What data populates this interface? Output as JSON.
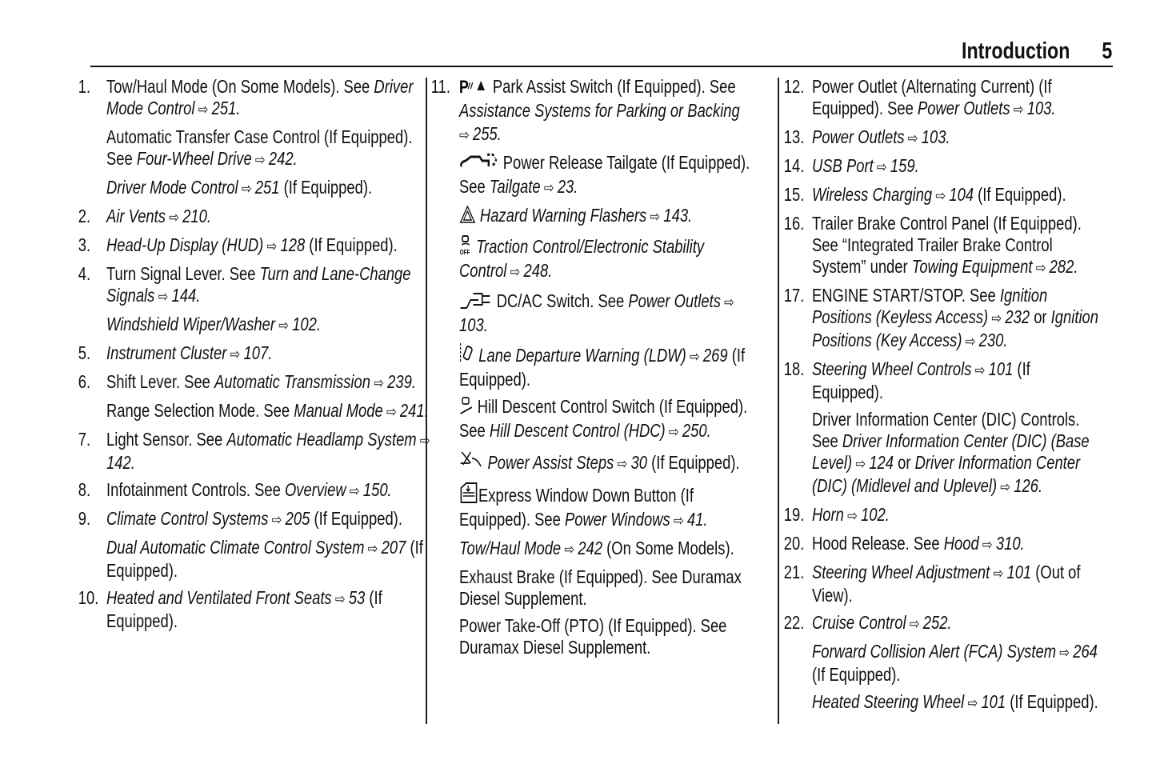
{
  "header": {
    "section": "Introduction",
    "page": "5"
  },
  "columns": [
    {
      "items": [
        {
          "num": "1.",
          "paras": [
            [
              {
                "s": "n",
                "t": "Tow/Haul Mode (On Some Models). See "
              },
              {
                "s": "i",
                "t": "Driver Mode Control"
              },
              {
                "s": "a",
                "t": "251."
              }
            ],
            [
              {
                "s": "n",
                "t": "Automatic Transfer Case Control (If Equipped). See "
              },
              {
                "s": "i",
                "t": "Four-Wheel Drive"
              },
              {
                "s": "a",
                "t": "242."
              }
            ],
            [
              {
                "s": "i",
                "t": "Driver Mode Control"
              },
              {
                "s": "a",
                "t": "251"
              },
              {
                "s": "n",
                "t": " (If Equipped)."
              }
            ]
          ]
        },
        {
          "num": "2.",
          "paras": [
            [
              {
                "s": "i",
                "t": "Air Vents"
              },
              {
                "s": "a",
                "t": "210."
              }
            ]
          ]
        },
        {
          "num": "3.",
          "paras": [
            [
              {
                "s": "i",
                "t": "Head-Up Display (HUD)"
              },
              {
                "s": "a",
                "t": "128"
              },
              {
                "s": "n",
                "t": " (If Equipped)."
              }
            ]
          ]
        },
        {
          "num": "4.",
          "paras": [
            [
              {
                "s": "n",
                "t": "Turn Signal Lever. See "
              },
              {
                "s": "i",
                "t": "Turn and Lane-Change Signals"
              },
              {
                "s": "a",
                "t": "144."
              }
            ],
            [
              {
                "s": "i",
                "t": "Windshield Wiper/Washer"
              },
              {
                "s": "a",
                "t": "102."
              }
            ]
          ]
        },
        {
          "num": "5.",
          "paras": [
            [
              {
                "s": "i",
                "t": "Instrument Cluster"
              },
              {
                "s": "a",
                "t": "107."
              }
            ]
          ]
        },
        {
          "num": "6.",
          "paras": [
            [
              {
                "s": "n",
                "t": "Shift Lever. See "
              },
              {
                "s": "i",
                "t": "Automatic Transmission"
              },
              {
                "s": "a",
                "t": "239."
              }
            ],
            [
              {
                "s": "n",
                "t": "Range Selection Mode. See "
              },
              {
                "s": "i",
                "t": "Manual Mode"
              },
              {
                "s": "a",
                "t": "241."
              }
            ]
          ]
        },
        {
          "num": "7.",
          "paras": [
            [
              {
                "s": "n",
                "t": "Light Sensor. See "
              },
              {
                "s": "i",
                "t": "Automatic Headlamp System"
              },
              {
                "s": "a",
                "t": "142."
              }
            ]
          ]
        },
        {
          "num": "8.",
          "paras": [
            [
              {
                "s": "n",
                "t": "Infotainment Controls. See "
              },
              {
                "s": "i",
                "t": "Overview"
              },
              {
                "s": "a",
                "t": "150."
              }
            ]
          ]
        },
        {
          "num": "9.",
          "paras": [
            [
              {
                "s": "i",
                "t": "Climate Control Systems"
              },
              {
                "s": "a",
                "t": "205"
              },
              {
                "s": "n",
                "t": " (If Equipped)."
              }
            ],
            [
              {
                "s": "i",
                "t": "Dual Automatic Climate Control System"
              },
              {
                "s": "a",
                "t": "207"
              },
              {
                "s": "n",
                "t": " (If Equipped)."
              }
            ]
          ]
        },
        {
          "num": "10.",
          "paras": [
            [
              {
                "s": "i",
                "t": "Heated and Ventilated Front Seats"
              },
              {
                "s": "a",
                "t": "53"
              },
              {
                "s": "n",
                "t": " (If Equipped)."
              }
            ]
          ]
        }
      ]
    },
    {
      "items": [
        {
          "num": "11.",
          "paras": [
            [
              {
                "s": "icon",
                "t": "park-assist-icon"
              },
              {
                "s": "n",
                "t": " Park Assist Switch (If Equipped). See "
              },
              {
                "s": "i",
                "t": "Assistance Systems for Parking or Backing"
              },
              {
                "s": "a",
                "t": "255."
              }
            ],
            [
              {
                "s": "icon",
                "t": "tailgate-icon"
              },
              {
                "s": "n",
                "t": " Power Release Tailgate (If Equipped). See "
              },
              {
                "s": "i",
                "t": "Tailgate"
              },
              {
                "s": "a",
                "t": "23."
              }
            ],
            [
              {
                "s": "icon",
                "t": "hazard-icon"
              },
              {
                "s": "i",
                "t": " Hazard Warning Flashers"
              },
              {
                "s": "a",
                "t": "143."
              }
            ],
            [
              {
                "s": "icon",
                "t": "traction-off-icon"
              },
              {
                "s": "i",
                "t": " Traction Control/Electronic Stability Control"
              },
              {
                "s": "a",
                "t": "248."
              }
            ],
            [
              {
                "s": "icon",
                "t": "dc-ac-plug-icon"
              },
              {
                "s": "n",
                "t": " DC/AC Switch. See "
              },
              {
                "s": "i",
                "t": "Power Outlets"
              },
              {
                "s": "a",
                "t": "103."
              }
            ],
            [
              {
                "s": "icon",
                "t": "lane-departure-icon"
              },
              {
                "s": "i",
                "t": " Lane Departure Warning (LDW)"
              },
              {
                "s": "a",
                "t": "269"
              },
              {
                "s": "n",
                "t": " (If Equipped)."
              }
            ],
            [
              {
                "s": "icon",
                "t": "hill-descent-icon"
              },
              {
                "s": "n",
                "t": " Hill Descent Control Switch (If Equipped). See "
              },
              {
                "s": "i",
                "t": "Hill Descent Control (HDC)"
              },
              {
                "s": "a",
                "t": "250."
              }
            ],
            [
              {
                "s": "icon",
                "t": "assist-steps-icon"
              },
              {
                "s": "i",
                "t": " Power Assist Steps"
              },
              {
                "s": "a",
                "t": "30"
              },
              {
                "s": "n",
                "t": " (If Equipped)."
              }
            ],
            [
              {
                "s": "icon",
                "t": "express-window-icon"
              },
              {
                "s": "n",
                "t": "Express Window Down Button (If Equipped). See "
              },
              {
                "s": "i",
                "t": "Power Windows"
              },
              {
                "s": "a",
                "t": "41."
              }
            ],
            [
              {
                "s": "i",
                "t": "Tow/Haul Mode"
              },
              {
                "s": "a",
                "t": "242"
              },
              {
                "s": "n",
                "t": " (On Some Models)."
              }
            ],
            [
              {
                "s": "n",
                "t": "Exhaust Brake (If Equipped). See Duramax Diesel Supplement."
              }
            ],
            [
              {
                "s": "n",
                "t": "Power Take-Off (PTO) (If Equipped). See Duramax Diesel Supplement."
              }
            ]
          ]
        }
      ]
    },
    {
      "items": [
        {
          "num": "12.",
          "paras": [
            [
              {
                "s": "n",
                "t": "Power Outlet (Alternating Current) (If Equipped). See "
              },
              {
                "s": "i",
                "t": "Power Outlets"
              },
              {
                "s": "a",
                "t": "103."
              }
            ]
          ]
        },
        {
          "num": "13.",
          "paras": [
            [
              {
                "s": "i",
                "t": "Power Outlets"
              },
              {
                "s": "a",
                "t": "103."
              }
            ]
          ]
        },
        {
          "num": "14.",
          "paras": [
            [
              {
                "s": "i",
                "t": "USB Port"
              },
              {
                "s": "a",
                "t": "159."
              }
            ]
          ]
        },
        {
          "num": "15.",
          "paras": [
            [
              {
                "s": "i",
                "t": "Wireless Charging"
              },
              {
                "s": "a",
                "t": "104"
              },
              {
                "s": "n",
                "t": " (If Equipped)."
              }
            ]
          ]
        },
        {
          "num": "16.",
          "paras": [
            [
              {
                "s": "n",
                "t": "Trailer Brake Control Panel (If Equipped). See “Integrated Trailer Brake Control System” under "
              },
              {
                "s": "i",
                "t": "Towing Equipment"
              },
              {
                "s": "a",
                "t": "282."
              }
            ]
          ]
        },
        {
          "num": "17.",
          "paras": [
            [
              {
                "s": "n",
                "t": "ENGINE START/STOP. See "
              },
              {
                "s": "i",
                "t": "Ignition Positions (Keyless Access)"
              },
              {
                "s": "a",
                "t": "232"
              },
              {
                "s": "n",
                "t": " or "
              },
              {
                "s": "i",
                "t": "Ignition Positions (Key Access)"
              },
              {
                "s": "a",
                "t": "230."
              }
            ]
          ]
        },
        {
          "num": "18.",
          "paras": [
            [
              {
                "s": "i",
                "t": "Steering Wheel Controls"
              },
              {
                "s": "a",
                "t": "101"
              },
              {
                "s": "n",
                "t": " (If Equipped)."
              }
            ],
            [
              {
                "s": "n",
                "t": "Driver Information Center (DIC) Controls. See "
              },
              {
                "s": "i",
                "t": "Driver Information Center (DIC) (Base Level)"
              },
              {
                "s": "a",
                "t": "124"
              },
              {
                "s": "n",
                "t": " or "
              },
              {
                "s": "i",
                "t": "Driver Information Center (DIC) (Midlevel and Uplevel)"
              },
              {
                "s": "a",
                "t": "126."
              }
            ]
          ]
        },
        {
          "num": "19.",
          "paras": [
            [
              {
                "s": "i",
                "t": "Horn"
              },
              {
                "s": "a",
                "t": "102."
              }
            ]
          ]
        },
        {
          "num": "20.",
          "paras": [
            [
              {
                "s": "n",
                "t": "Hood Release. See "
              },
              {
                "s": "i",
                "t": "Hood"
              },
              {
                "s": "a",
                "t": "310."
              }
            ]
          ]
        },
        {
          "num": "21.",
          "paras": [
            [
              {
                "s": "i",
                "t": "Steering Wheel Adjustment"
              },
              {
                "s": "a",
                "t": "101"
              },
              {
                "s": "n",
                "t": " (Out of View)."
              }
            ]
          ]
        },
        {
          "num": "22.",
          "paras": [
            [
              {
                "s": "i",
                "t": "Cruise Control"
              },
              {
                "s": "a",
                "t": "252."
              }
            ],
            [
              {
                "s": "i",
                "t": "Forward Collision Alert (FCA) System"
              },
              {
                "s": "a",
                "t": "264"
              },
              {
                "s": "n",
                "t": " (If Equipped)."
              }
            ],
            [
              {
                "s": "i",
                "t": "Heated Steering Wheel"
              },
              {
                "s": "a",
                "t": "101"
              },
              {
                "s": "n",
                "t": " (If Equipped)."
              }
            ]
          ]
        }
      ]
    }
  ]
}
